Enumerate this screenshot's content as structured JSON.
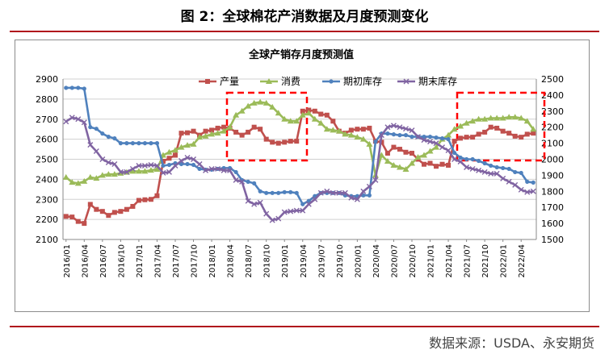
{
  "figure": {
    "title": "图 2：全球棉花产消数据及月度预测变化",
    "source": "数据来源：USDA、永安期货"
  },
  "chart_data": {
    "type": "line",
    "title": "全球产销存月度预测值",
    "x": [
      "2016/01",
      "2016/02",
      "2016/03",
      "2016/04",
      "2016/05",
      "2016/06",
      "2016/07",
      "2016/08",
      "2016/09",
      "2016/10",
      "2016/11",
      "2016/12",
      "2017/01",
      "2017/02",
      "2017/03",
      "2017/04",
      "2017/05",
      "2017/06",
      "2017/07",
      "2017/08",
      "2017/09",
      "2017/10",
      "2017/11",
      "2017/12",
      "2018/01",
      "2018/02",
      "2018/03",
      "2018/04",
      "2018/05",
      "2018/06",
      "2018/07",
      "2018/08",
      "2018/09",
      "2018/10",
      "2018/11",
      "2018/12",
      "2019/01",
      "2019/02",
      "2019/03",
      "2019/04",
      "2019/05",
      "2019/06",
      "2019/07",
      "2019/08",
      "2019/09",
      "2019/10",
      "2019/11",
      "2019/12",
      "2020/01",
      "2020/02",
      "2020/03",
      "2020/04",
      "2020/05",
      "2020/06",
      "2020/07",
      "2020/08",
      "2020/09",
      "2020/10",
      "2020/11",
      "2020/12",
      "2021/01",
      "2021/02",
      "2021/03",
      "2021/04",
      "2021/05",
      "2021/06",
      "2021/07",
      "2021/08",
      "2021/09",
      "2021/10",
      "2021/11",
      "2021/12",
      "2022/01",
      "2022/02",
      "2022/03",
      "2022/04",
      "2022/05",
      "2022/06"
    ],
    "x_tick_labels": [
      "2016/01",
      "2016/04",
      "2016/07",
      "2016/10",
      "2017/01",
      "2017/04",
      "2017/07",
      "2017/10",
      "2018/01",
      "2018/04",
      "2018/07",
      "2018/10",
      "2019/01",
      "2019/04",
      "2019/07",
      "2019/10",
      "2020/01",
      "2020/04",
      "2020/07",
      "2020/10",
      "2021/01",
      "2021/04",
      "2021/07",
      "2021/10",
      "2022/01",
      "2022/04"
    ],
    "y_left": {
      "min": 2100,
      "max": 2900,
      "step": 100
    },
    "y_right": {
      "min": 1500,
      "max": 2500,
      "step": 100
    },
    "grid": true,
    "legend_position": "top",
    "series": [
      {
        "name": "产量",
        "axis": "left",
        "color": "#c0504d",
        "marker": "square",
        "values": [
          2215,
          2212,
          2190,
          2180,
          2275,
          2250,
          2240,
          2220,
          2235,
          2240,
          2250,
          2265,
          2295,
          2298,
          2300,
          2318,
          2490,
          2505,
          2520,
          2630,
          2632,
          2640,
          2620,
          2640,
          2645,
          2655,
          2660,
          2655,
          2635,
          2620,
          2635,
          2660,
          2650,
          2600,
          2585,
          2580,
          2585,
          2590,
          2590,
          2740,
          2745,
          2740,
          2725,
          2720,
          2690,
          2640,
          2630,
          2645,
          2650,
          2650,
          2655,
          2590,
          2585,
          2530,
          2560,
          2550,
          2535,
          2530,
          2500,
          2475,
          2480,
          2465,
          2475,
          2470,
          2590,
          2605,
          2610,
          2610,
          2625,
          2635,
          2660,
          2655,
          2640,
          2630,
          2615,
          2610,
          2625,
          2630
        ]
      },
      {
        "name": "消费",
        "axis": "left",
        "color": "#9bbb59",
        "marker": "triangle",
        "values": [
          2410,
          2385,
          2380,
          2390,
          2410,
          2405,
          2420,
          2425,
          2425,
          2430,
          2435,
          2440,
          2440,
          2440,
          2445,
          2450,
          2520,
          2535,
          2545,
          2560,
          2570,
          2575,
          2610,
          2615,
          2625,
          2630,
          2640,
          2660,
          2720,
          2740,
          2765,
          2780,
          2785,
          2780,
          2760,
          2730,
          2700,
          2690,
          2690,
          2720,
          2730,
          2700,
          2680,
          2650,
          2645,
          2640,
          2625,
          2620,
          2610,
          2600,
          2575,
          2420,
          2520,
          2490,
          2470,
          2460,
          2450,
          2480,
          2510,
          2520,
          2540,
          2560,
          2600,
          2620,
          2650,
          2665,
          2680,
          2690,
          2700,
          2700,
          2705,
          2705,
          2705,
          2710,
          2710,
          2705,
          2690,
          2650
        ]
      },
      {
        "name": "期初库存",
        "axis": "right",
        "color": "#4f81bd",
        "marker": "circle",
        "values": [
          2445,
          2445,
          2445,
          2440,
          2200,
          2190,
          2160,
          2140,
          2130,
          2100,
          2100,
          2100,
          2100,
          2100,
          2100,
          2100,
          1960,
          1965,
          1975,
          1970,
          1970,
          1965,
          1940,
          1935,
          1935,
          1940,
          1945,
          1945,
          1920,
          1870,
          1860,
          1850,
          1800,
          1790,
          1790,
          1790,
          1795,
          1795,
          1790,
          1720,
          1740,
          1770,
          1790,
          1790,
          1790,
          1790,
          1775,
          1770,
          1770,
          1775,
          1775,
          2110,
          2160,
          2160,
          2155,
          2150,
          2150,
          2140,
          2140,
          2140,
          2140,
          2135,
          2130,
          2125,
          2040,
          2010,
          2000,
          2000,
          1990,
          1975,
          1960,
          1950,
          1945,
          1940,
          1920,
          1915,
          1860,
          1855
        ]
      },
      {
        "name": "期末库存",
        "axis": "right",
        "color": "#8064a2",
        "marker": "x",
        "values": [
          2235,
          2260,
          2250,
          2230,
          2090,
          2050,
          2000,
          1980,
          1970,
          1920,
          1920,
          1940,
          1960,
          1960,
          1965,
          1960,
          1915,
          1920,
          1960,
          1990,
          2010,
          2000,
          1970,
          1930,
          1940,
          1940,
          1930,
          1930,
          1870,
          1860,
          1740,
          1720,
          1730,
          1660,
          1620,
          1630,
          1670,
          1675,
          1680,
          1680,
          1720,
          1750,
          1790,
          1800,
          1790,
          1790,
          1790,
          1760,
          1750,
          1800,
          1830,
          1870,
          2150,
          2200,
          2210,
          2200,
          2190,
          2180,
          2140,
          2120,
          2110,
          2100,
          2075,
          2055,
          2000,
          1985,
          1950,
          1940,
          1930,
          1920,
          1910,
          1910,
          1880,
          1860,
          1840,
          1810,
          1795,
          1800
        ]
      }
    ]
  }
}
